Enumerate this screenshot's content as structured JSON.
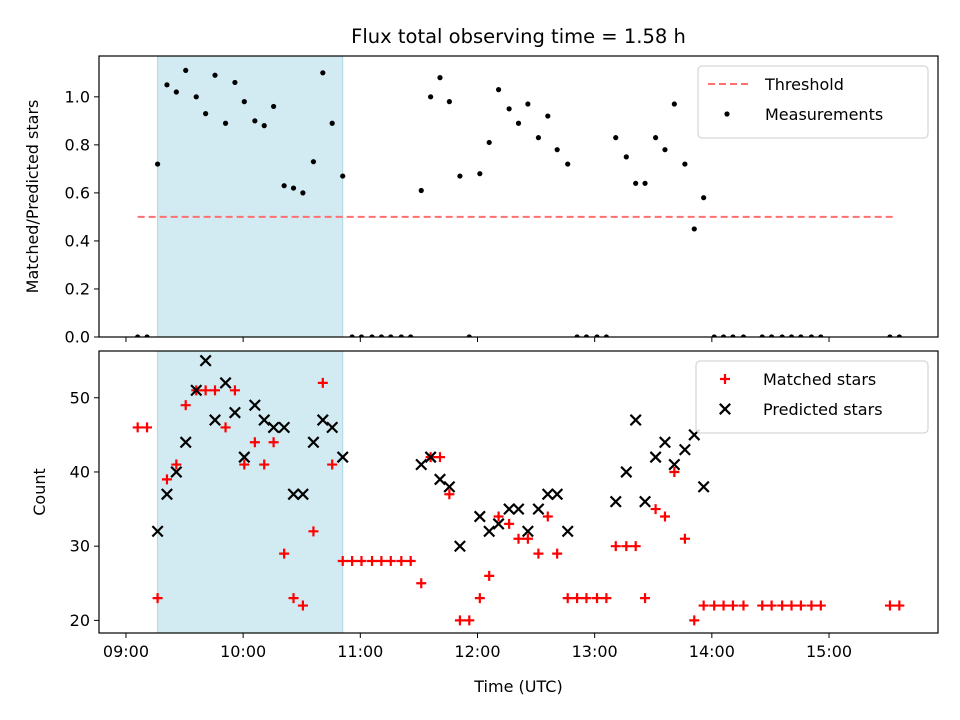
{
  "chart_data": [
    {
      "type": "scatter",
      "title": "Flux total observing time = 1.58 h",
      "xlabel": "",
      "ylabel": "Matched/Predicted stars",
      "x_units": "hours UTC",
      "xlim": [
        8.77,
        15.93
      ],
      "ylim": [
        0.0,
        1.17
      ],
      "yticks": [
        "0.0",
        "0.2",
        "0.4",
        "0.6",
        "0.8",
        "1.0"
      ],
      "ytick_values": [
        0.0,
        0.2,
        0.4,
        0.6,
        0.8,
        1.0
      ],
      "legend_position": "upper-right",
      "shaded_interval": {
        "x0": 9.27,
        "x1": 10.85,
        "color": "#add8e6"
      },
      "threshold": {
        "name": "Threshold",
        "y": 0.5,
        "x0": 9.1,
        "x1": 15.57,
        "color": "#ff7070"
      },
      "series": [
        {
          "name": "Measurements",
          "color": "#000000",
          "marker": "dot",
          "x": [
            9.1,
            9.18,
            9.27,
            9.35,
            9.43,
            9.51,
            9.6,
            9.68,
            9.76,
            9.85,
            9.93,
            10.01,
            10.1,
            10.18,
            10.26,
            10.35,
            10.43,
            10.51,
            10.6,
            10.68,
            10.76,
            10.85,
            10.93,
            11.01,
            11.1,
            11.18,
            11.26,
            11.35,
            11.43,
            11.52,
            11.6,
            11.68,
            11.76,
            11.85,
            11.93,
            12.02,
            12.1,
            12.18,
            12.27,
            12.35,
            12.43,
            12.52,
            12.6,
            12.68,
            12.77,
            12.85,
            12.93,
            13.02,
            13.1,
            13.18,
            13.27,
            13.35,
            13.43,
            13.52,
            13.6,
            13.68,
            13.77,
            13.85,
            13.93,
            14.02,
            14.1,
            14.18,
            14.27,
            14.43,
            14.51,
            14.6,
            14.68,
            14.76,
            14.85,
            14.93,
            15.52,
            15.6
          ],
          "y": [
            0.0,
            0.0,
            0.72,
            1.05,
            1.02,
            1.11,
            1.0,
            0.93,
            1.09,
            0.89,
            1.06,
            0.98,
            0.9,
            0.88,
            0.96,
            0.63,
            0.62,
            0.6,
            0.73,
            1.1,
            0.89,
            0.67,
            0.0,
            0.0,
            0.0,
            0.0,
            0.0,
            0.0,
            0.0,
            0.61,
            1.0,
            1.08,
            0.98,
            0.67,
            0.0,
            0.68,
            0.81,
            1.03,
            0.95,
            0.89,
            0.97,
            0.83,
            0.92,
            0.78,
            0.72,
            0.0,
            0.0,
            0.0,
            0.0,
            0.83,
            0.75,
            0.64,
            0.64,
            0.83,
            0.78,
            0.97,
            0.72,
            0.45,
            0.58,
            0.0,
            0.0,
            0.0,
            0.0,
            0.0,
            0.0,
            0.0,
            0.0,
            0.0,
            0.0,
            0.0,
            0.0,
            0.0
          ]
        }
      ]
    },
    {
      "type": "scatter",
      "xlabel": "Time (UTC)",
      "ylabel": "Count",
      "x_units": "hours UTC",
      "xlim": [
        8.77,
        15.93
      ],
      "ylim": [
        18.3,
        56.3
      ],
      "xticks": [
        "09:00",
        "10:00",
        "11:00",
        "12:00",
        "13:00",
        "14:00",
        "15:00"
      ],
      "xtick_values": [
        9,
        10,
        11,
        12,
        13,
        14,
        15
      ],
      "yticks": [
        "20",
        "30",
        "40",
        "50"
      ],
      "ytick_values": [
        20,
        30,
        40,
        50
      ],
      "legend_position": "upper-right",
      "shaded_interval": {
        "x0": 9.27,
        "x1": 10.85,
        "color": "#add8e6"
      },
      "series": [
        {
          "name": "Matched stars",
          "color": "#ff0000",
          "marker": "plus",
          "x": [
            9.1,
            9.18,
            9.27,
            9.35,
            9.43,
            9.51,
            9.6,
            9.68,
            9.76,
            9.85,
            9.93,
            10.01,
            10.1,
            10.18,
            10.26,
            10.35,
            10.43,
            10.51,
            10.6,
            10.68,
            10.76,
            10.85,
            10.93,
            11.01,
            11.1,
            11.18,
            11.26,
            11.35,
            11.43,
            11.52,
            11.6,
            11.68,
            11.76,
            11.85,
            11.93,
            12.02,
            12.1,
            12.18,
            12.27,
            12.35,
            12.43,
            12.52,
            12.6,
            12.68,
            12.77,
            12.85,
            12.93,
            13.02,
            13.1,
            13.18,
            13.27,
            13.35,
            13.43,
            13.52,
            13.6,
            13.68,
            13.77,
            13.85,
            13.93,
            14.02,
            14.1,
            14.18,
            14.27,
            14.43,
            14.51,
            14.6,
            14.68,
            14.76,
            14.85,
            14.93,
            15.52,
            15.6
          ],
          "y": [
            46,
            46,
            23,
            39,
            41,
            49,
            51,
            51,
            51,
            46,
            51,
            41,
            44,
            41,
            44,
            29,
            23,
            22,
            32,
            52,
            41,
            28,
            28,
            28,
            28,
            28,
            28,
            28,
            28,
            25,
            42,
            42,
            37,
            20,
            20,
            23,
            26,
            34,
            33,
            31,
            31,
            29,
            34,
            29,
            23,
            23,
            23,
            23,
            23,
            30,
            30,
            30,
            23,
            35,
            34,
            40,
            31,
            20,
            22,
            22,
            22,
            22,
            22,
            22,
            22,
            22,
            22,
            22,
            22,
            22,
            22,
            22
          ]
        },
        {
          "name": "Predicted stars",
          "color": "#000000",
          "marker": "x",
          "x": [
            9.27,
            9.35,
            9.43,
            9.51,
            9.6,
            9.68,
            9.76,
            9.85,
            9.93,
            10.01,
            10.1,
            10.18,
            10.26,
            10.35,
            10.43,
            10.51,
            10.6,
            10.68,
            10.76,
            10.85,
            11.52,
            11.6,
            11.68,
            11.76,
            11.85,
            12.02,
            12.1,
            12.18,
            12.27,
            12.35,
            12.43,
            12.52,
            12.6,
            12.68,
            12.77,
            13.18,
            13.27,
            13.35,
            13.43,
            13.52,
            13.6,
            13.68,
            13.77,
            13.85,
            13.93
          ],
          "y": [
            32,
            37,
            40,
            44,
            51,
            55,
            47,
            52,
            48,
            42,
            49,
            47,
            46,
            46,
            37,
            37,
            44,
            47,
            46,
            42,
            41,
            42,
            39,
            38,
            30,
            34,
            32,
            33,
            35,
            35,
            32,
            35,
            37,
            37,
            32,
            36,
            40,
            47,
            36,
            42,
            44,
            41,
            43,
            45,
            38
          ]
        }
      ]
    }
  ]
}
